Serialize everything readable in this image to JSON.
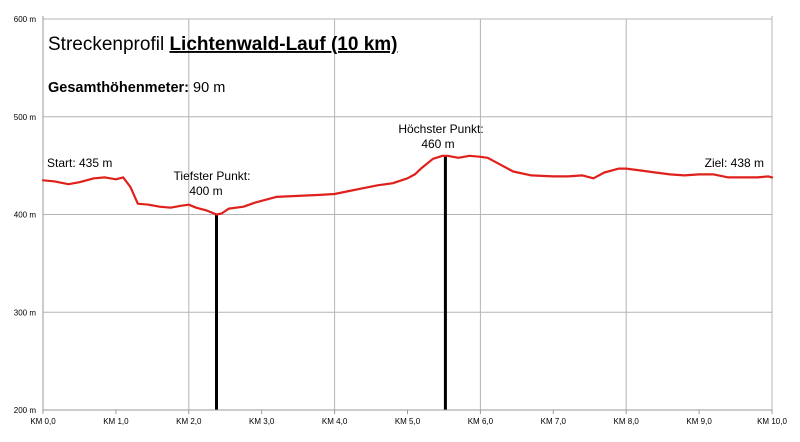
{
  "chart_data": {
    "type": "area",
    "title_prefix": "Streckenprofil",
    "title_main": "Lichtenwald-Lauf (10 km)",
    "subtitle_label": "Gesamthöhenmeter:",
    "subtitle_value": "90 m",
    "xlim": [
      0,
      10
    ],
    "ylim": [
      200,
      600
    ],
    "x_ticks": [
      {
        "value": 0,
        "label": "KM 0,0"
      },
      {
        "value": 1,
        "label": "KM 1,0"
      },
      {
        "value": 2,
        "label": "KM 2,0"
      },
      {
        "value": 3,
        "label": "KM 3,0"
      },
      {
        "value": 4,
        "label": "KM 4,0"
      },
      {
        "value": 5,
        "label": "KM 5,0"
      },
      {
        "value": 6,
        "label": "KM 6,0"
      },
      {
        "value": 7,
        "label": "KM 7,0"
      },
      {
        "value": 8,
        "label": "KM 8,0"
      },
      {
        "value": 9,
        "label": "KM 9,0"
      },
      {
        "value": 10,
        "label": "KM 10,0"
      }
    ],
    "y_ticks": [
      {
        "value": 200,
        "label": "200 m"
      },
      {
        "value": 300,
        "label": "300 m"
      },
      {
        "value": 400,
        "label": "400 m"
      },
      {
        "value": 500,
        "label": "500 m"
      },
      {
        "value": 600,
        "label": "600 m"
      }
    ],
    "grid": {
      "horizontal": true,
      "vertical": [
        2,
        4,
        6,
        8
      ]
    },
    "series": [
      {
        "color": "#e0201a",
        "x": [
          0,
          0.15,
          0.35,
          0.5,
          0.7,
          0.85,
          1.0,
          1.1,
          1.2,
          1.3,
          1.45,
          1.6,
          1.75,
          1.9,
          2.0,
          2.1,
          2.25,
          2.38,
          2.45,
          2.55,
          2.75,
          2.9,
          3.0,
          3.2,
          3.5,
          3.8,
          4.0,
          4.2,
          4.4,
          4.6,
          4.8,
          5.0,
          5.1,
          5.2,
          5.35,
          5.48,
          5.55,
          5.7,
          5.85,
          6.0,
          6.1,
          6.25,
          6.45,
          6.7,
          7.0,
          7.2,
          7.4,
          7.55,
          7.7,
          7.9,
          8.0,
          8.2,
          8.4,
          8.6,
          8.8,
          9.0,
          9.2,
          9.4,
          9.6,
          9.8,
          9.95,
          10.0
        ],
        "y": [
          435,
          434,
          431,
          433,
          437,
          438,
          436,
          438,
          428,
          411,
          410,
          408,
          407,
          409,
          410,
          407,
          404,
          400,
          401,
          406,
          408,
          412,
          414,
          418,
          419,
          420,
          421,
          424,
          427,
          430,
          432,
          437,
          441,
          448,
          457,
          460,
          460,
          458,
          460,
          459,
          458,
          452,
          444,
          440,
          439,
          439,
          440,
          437,
          443,
          447,
          447,
          445,
          443,
          441,
          440,
          441,
          441,
          438,
          438,
          438,
          439,
          438
        ]
      }
    ],
    "markers": [
      {
        "x": 2.38,
        "y": 400,
        "label_line1": "Tiefster Punkt:",
        "label_line2": "400 m",
        "color": "#000000"
      },
      {
        "x": 5.52,
        "y": 460,
        "label_line1": "Höchster Punkt:",
        "label_line2": "460 m",
        "color": "#000000"
      }
    ],
    "annotations": {
      "start": "Start: 435 m",
      "finish": "Ziel: 438 m"
    }
  }
}
